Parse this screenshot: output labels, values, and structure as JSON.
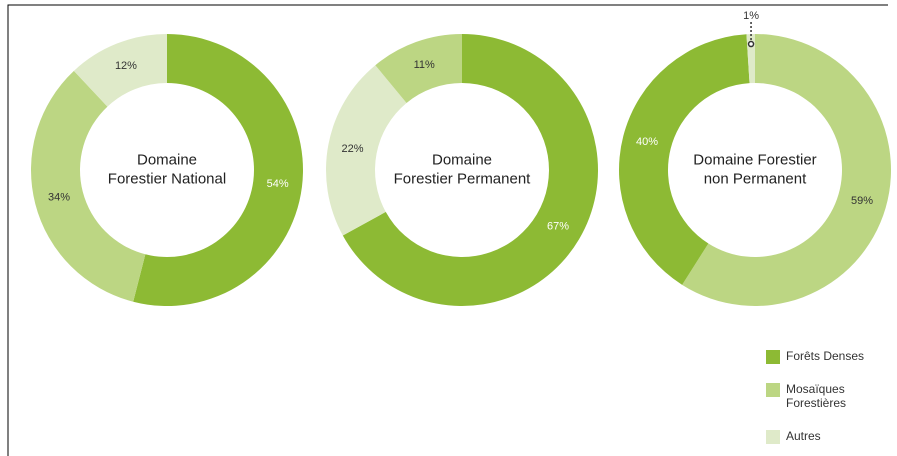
{
  "chart_data": [
    {
      "type": "pie",
      "title": [
        "Domaine",
        "Forestier National"
      ],
      "values": [
        54,
        34,
        12
      ],
      "value_labels": [
        "54%",
        "34%",
        "12%"
      ],
      "colors": [
        "#8dba34",
        "#bcd683",
        "#dfeac9"
      ],
      "label_colors": [
        "#ffffff",
        "#333333",
        "#333333"
      ]
    },
    {
      "type": "pie",
      "title": [
        "Domaine",
        "Forestier Permanent"
      ],
      "values": [
        67,
        22,
        11
      ],
      "value_labels": [
        "67%",
        "22%",
        "11%"
      ],
      "colors": [
        "#8dba34",
        "#dfeac9",
        "#bcd683"
      ],
      "label_colors": [
        "#ffffff",
        "#333333",
        "#333333"
      ]
    },
    {
      "type": "pie",
      "title": [
        "Domaine Forestier",
        "non Permanent"
      ],
      "values": [
        59,
        40,
        1
      ],
      "value_labels": [
        "59%",
        "40%",
        "1%"
      ],
      "colors": [
        "#bcd683",
        "#8dba34",
        "#dfeac9"
      ],
      "label_colors": [
        "#333333",
        "#ffffff",
        "#333333"
      ]
    }
  ],
  "legend": [
    {
      "label": [
        "Forêts Denses"
      ],
      "color": "#8dba34"
    },
    {
      "label": [
        "Mosaïques",
        "Forestières"
      ],
      "color": "#bcd683"
    },
    {
      "label": [
        "Autres"
      ],
      "color": "#dfeac9"
    }
  ]
}
